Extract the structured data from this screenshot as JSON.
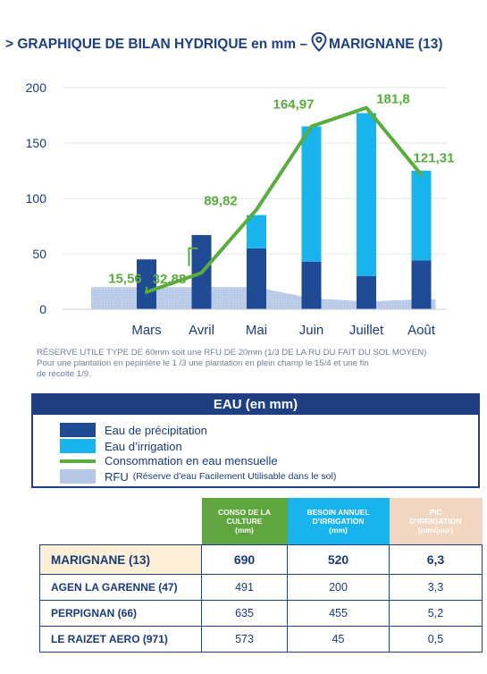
{
  "title": {
    "prefix": "> GRAPHIQUE DE BILAN HYDRIQUE en mm –",
    "location": "MARIGNANE (13)"
  },
  "colors": {
    "precipitation": "#1f4a94",
    "irrigation": "#19b3ee",
    "consommation": "#5aac3c",
    "rfu": "#b7c7e6",
    "label_green": "#5aac3c",
    "axis_text": "#1b3a78"
  },
  "chart_data": {
    "type": "bar",
    "categories": [
      "Mars",
      "Avril",
      "Mai",
      "Juin",
      "Juillet",
      "Août"
    ],
    "ylim": [
      0,
      200
    ],
    "yticks": [
      0,
      50,
      100,
      150,
      200
    ],
    "grid": true,
    "series": [
      {
        "name": "Eau de précipitation",
        "kind": "bar-stacked",
        "values": [
          45,
          67,
          55,
          43,
          30,
          44
        ]
      },
      {
        "name": "Eau d’irrigation",
        "kind": "bar-stacked",
        "values": [
          0,
          0,
          30,
          122,
          147,
          81
        ]
      },
      {
        "name": "Consommation en eau mensuelle",
        "kind": "line",
        "values": [
          15.56,
          32.88,
          89.82,
          164.97,
          181.8,
          121.31
        ]
      },
      {
        "name": "RFU",
        "kind": "area",
        "values": [
          20,
          20,
          20,
          10,
          7,
          9
        ]
      }
    ],
    "point_labels": [
      "15,56",
      "32,88",
      "89,82",
      "164,97",
      "181,8",
      "121,31"
    ]
  },
  "note": {
    "line1": "RÉSERVE UTILE TYPE DE 60mm soit une RFU DE 20mm (1/3 DE LA RU DU FAIT DU SOL MOYEN)",
    "line2": "Pour une plantation en pépinière le 1 /3 une plantation en plein champ le 15/4 et une fin",
    "line3": "de récolte 1/9."
  },
  "legend": {
    "title": "EAU (en mm)",
    "precipitation": "Eau de précipitation",
    "irrigation": "Eau d’irrigation",
    "consommation": "Consommation en eau mensuelle",
    "rfu": "RFU",
    "rfu_detail": "(Réserve d’eau Facilement Utilisable dans le sol)"
  },
  "table": {
    "headers": [
      "CONSO DE LA\nCULTURE\n(mm)",
      "BESOIN ANNUEL\nD’IRRIGATION\n(mm)",
      "PIC\nD’IRRIGATION\n(mm/jour)"
    ],
    "rows": [
      [
        "MARIGNANE (13)",
        "690",
        "520",
        "6,3"
      ],
      [
        "AGEN LA GARENNE (47)",
        "491",
        "200",
        "3,3"
      ],
      [
        "PERPIGNAN (66)",
        "635",
        "455",
        "5,2"
      ],
      [
        "LE RAIZET AERO (971)",
        "573",
        "45",
        "0,5"
      ]
    ]
  }
}
